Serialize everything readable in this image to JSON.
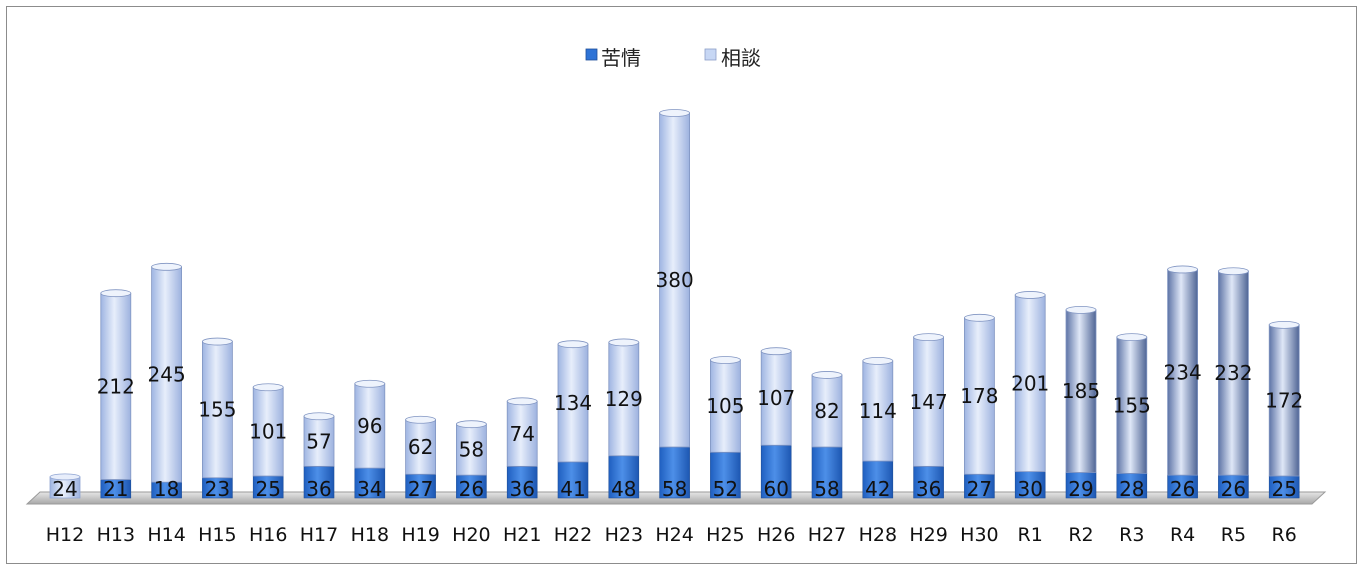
{
  "chart_data": {
    "type": "bar",
    "stacked": true,
    "categories": [
      "H12",
      "H13",
      "H14",
      "H15",
      "H16",
      "H17",
      "H18",
      "H19",
      "H20",
      "H21",
      "H22",
      "H23",
      "H24",
      "H25",
      "H26",
      "H27",
      "H28",
      "H29",
      "H30",
      "R1",
      "R2",
      "R3",
      "R4",
      "R5",
      "R6"
    ],
    "series": [
      {
        "name": "苦情",
        "color": "#2e73d6",
        "values": [
          24,
          21,
          18,
          23,
          25,
          36,
          34,
          27,
          26,
          36,
          41,
          48,
          58,
          52,
          60,
          58,
          42,
          36,
          27,
          30,
          29,
          28,
          26,
          26,
          25
        ]
      },
      {
        "name": "相談",
        "color": "#c7d7f4",
        "values": [
          0,
          212,
          245,
          155,
          101,
          57,
          96,
          62,
          58,
          74,
          134,
          129,
          380,
          105,
          107,
          82,
          114,
          147,
          178,
          201,
          185,
          155,
          234,
          232,
          172
        ]
      }
    ],
    "value_labels": {
      "苦情": [
        "24",
        "21",
        "18",
        "23",
        "25",
        "36",
        "34",
        "27",
        "26",
        "36",
        "41",
        "48",
        "58",
        "52",
        "60",
        "58",
        "42",
        "36",
        "27",
        "30",
        "29",
        "28",
        "26",
        "26",
        "25"
      ],
      "相談": [
        "",
        "212",
        "245",
        "155",
        "101",
        "57",
        "96",
        "62",
        "58",
        "74",
        "134",
        "129",
        "380",
        "105",
        "107",
        "82",
        "114",
        "147",
        "178",
        "201",
        "185",
        "155",
        "234",
        "232",
        "172"
      ]
    },
    "legend_position": "top-center",
    "grid": false,
    "ylim": [
      0,
      440
    ]
  }
}
